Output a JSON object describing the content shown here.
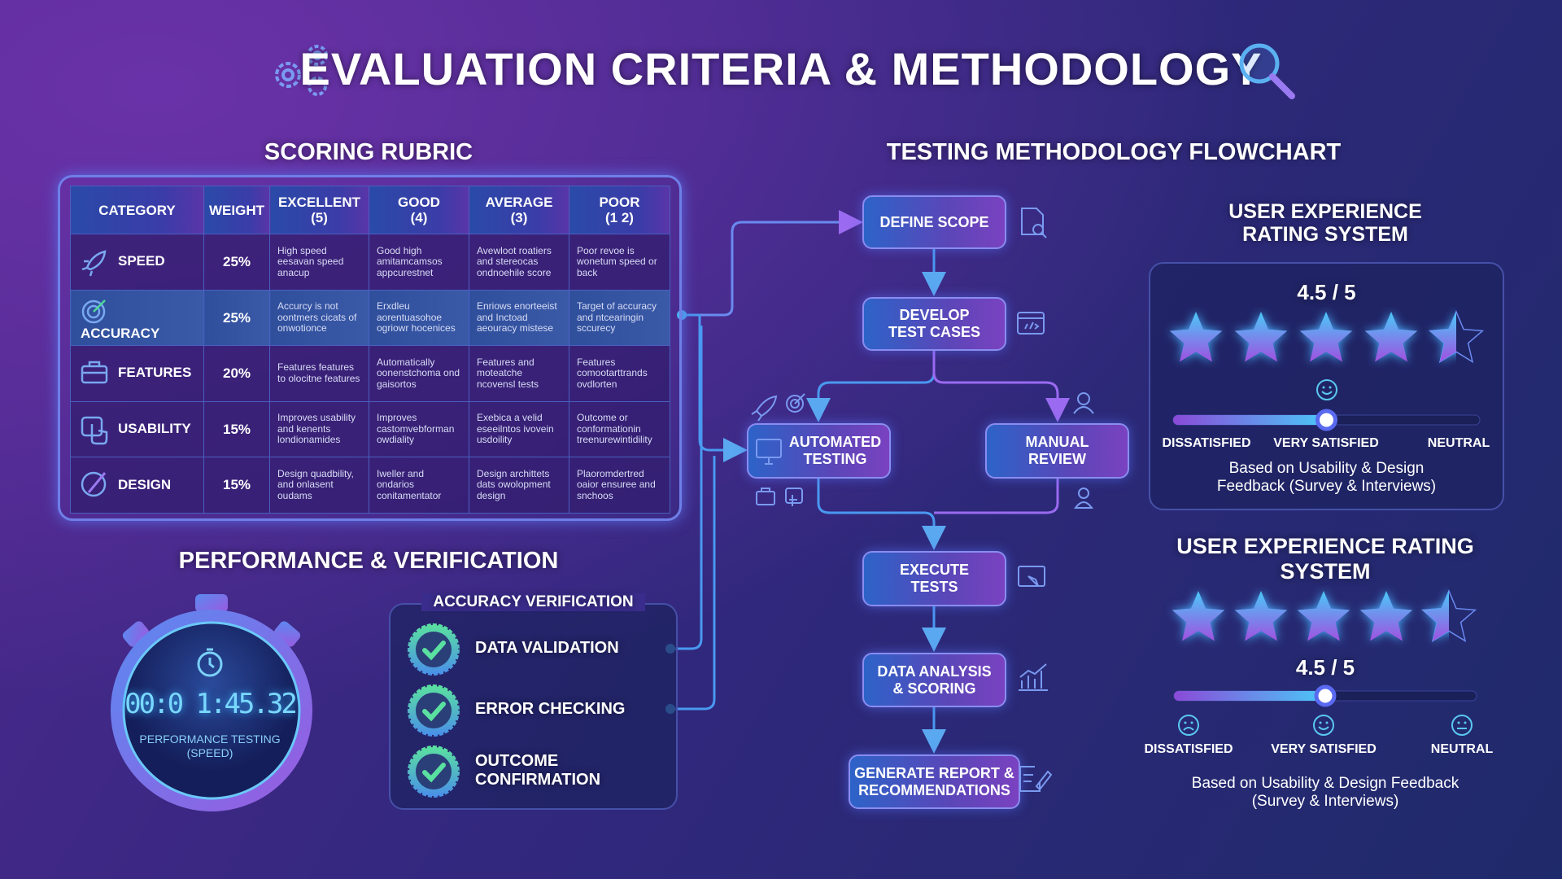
{
  "title": "EVALUATION CRITERIA & METHODOLOGY",
  "icons": {
    "title_left": "gears-icon",
    "title_right": "magnifier-icon"
  },
  "colors": {
    "accent_blue": "#3fa8f0",
    "accent_purple": "#8a4ad8",
    "check_green": "#4fd89a"
  },
  "rubric": {
    "title": "SCORING RUBRIC",
    "headers": [
      "CATEGORY",
      "WEIGHT",
      "EXCELLENT\n(5)",
      "GOOD\n(4)",
      "AVERAGE\n(3)",
      "POOR\n(1 2)"
    ],
    "rows": [
      {
        "icon": "rocket-icon",
        "category": "SPEED",
        "weight": "25%",
        "cells": [
          "High speed eesavan speed anacup",
          "Good high amitamcamsos appcurestnet",
          "Avewloot roatiers and stereocas ondnoehile score",
          "Poor revoe is wonetum speed or back"
        ]
      },
      {
        "icon": "target-icon",
        "category": "ACCURACY",
        "weight": "25%",
        "cells": [
          "Accurcy is not oontmers cicats of onwotionce",
          "Erxdleu aorentuasohoe ogriowr hocenices",
          "Enriows enorteeist and Inctoad aeouracy mistese",
          "Target of accuracy and ntcearingin sccurecy"
        ]
      },
      {
        "icon": "briefcase-icon",
        "category": "FEATURES",
        "weight": "20%",
        "cells": [
          "Features features to olocitne features",
          "Automatically oonenstchoma ond gaisortos",
          "Features and moteatche ncovensl tests",
          "Features comootarttrands ovdlorten"
        ]
      },
      {
        "icon": "touch-icon",
        "category": "USABILITY",
        "weight": "15%",
        "cells": [
          "Improves usability and kenents londionamides",
          "Improves castomvebforman owdiality",
          "Exebica a velid eseeilntos ivovein usdoility",
          "Outcome or conformationin treenurewintidility"
        ]
      },
      {
        "icon": "palette-icon",
        "category": "DESIGN",
        "weight": "15%",
        "cells": [
          "Design quadbility, and onlasent oudams",
          "Iweller and ondarios conitamentator",
          "Design archittets dats owolopment design",
          "Plaoromdertred oaior ensuree and snchoos"
        ]
      }
    ]
  },
  "performance": {
    "title": "PERFORMANCE & VERIFICATION",
    "timer": "00:0 1:45.32",
    "timer_label": "PERFORMANCE TESTING\n(SPEED)",
    "verification": {
      "title": "ACCURACY VERIFICATION",
      "items": [
        "DATA VALIDATION",
        "ERROR CHECKING",
        "OUTCOME\nCONFIRMATION"
      ]
    }
  },
  "flowchart": {
    "title": "TESTING METHODOLOGY FLOWCHART",
    "steps": {
      "define": "DEFINE SCOPE",
      "develop": "DEVELOP\nTEST CASES",
      "automated": "AUTOMATED\nTESTING",
      "manual": "MANUAL\nREVIEW",
      "execute": "EXECUTE\nTESTS",
      "analysis": "DATA ANALYSIS\n& SCORING",
      "report": "GENERATE REPORT &\nRECOMMENDATIONS"
    }
  },
  "ux1": {
    "title": "USER EXPERIENCE\nRATING SYSTEM",
    "score": "4.5 / 5",
    "rating": 4.5,
    "slider": 0.5,
    "labels": [
      "DISSATISFIED",
      "VERY SATISFIED",
      "NEUTRAL"
    ],
    "note": "Based on Usability & Design\nFeedback (Survey & Interviews)"
  },
  "ux2": {
    "title": "USER EXPERIENCE RATING\nSYSTEM",
    "score": "4.5 / 5",
    "rating": 4.5,
    "slider": 0.5,
    "labels": [
      "DISSATISFIED",
      "VERY SATISFIED",
      "NEUTRAL"
    ],
    "note": "Based on Usability & Design Feedback\n(Survey & Interviews)"
  }
}
